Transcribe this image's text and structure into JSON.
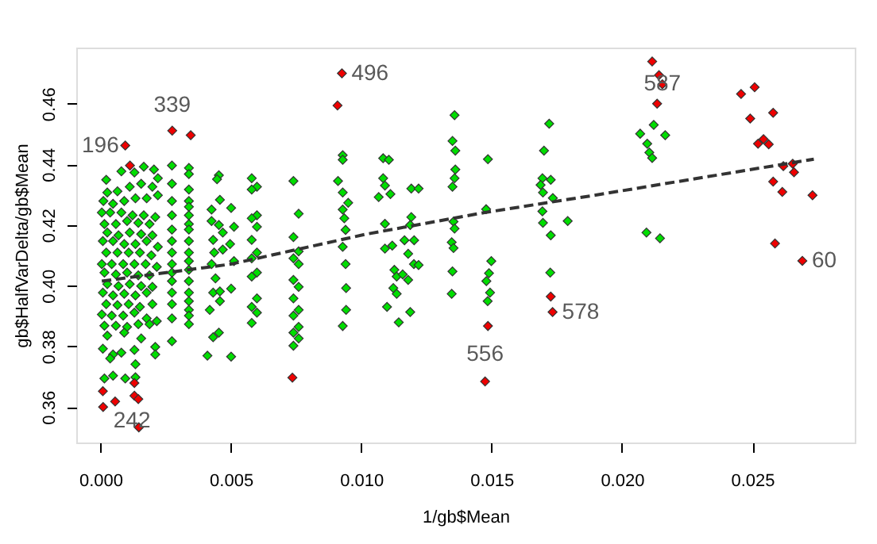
{
  "chart_data": {
    "type": "scatter",
    "xlabel": "1/gb$Mean",
    "ylabel": "gb$HalfVarDelta/gb$Mean",
    "xlim": [
      -0.00093,
      0.02893
    ],
    "ylim": [
      0.3483,
      0.4785
    ],
    "xticks": [
      {
        "value": 0,
        "label": "0.000"
      },
      0.005,
      {
        "value": 0.01,
        "label": "0.010"
      },
      0.015,
      {
        "value": 0.02,
        "label": "0.020"
      },
      0.025
    ],
    "yticks": [
      0.36,
      0.38,
      {
        "value": 0.4,
        "label": "0.40"
      },
      0.42,
      0.44,
      0.46
    ],
    "grid": false,
    "marker": "diamond",
    "series": [
      {
        "color": "#00dd00",
        "x": [
          0.00022,
          0.0008,
          0.0013,
          0.00166,
          0.00205,
          0.0022,
          0.00026,
          0.00065,
          0.00112,
          0.00156,
          0.00199,
          0.0022,
          0.00011,
          0.00048,
          0.00091,
          0.00134,
          0.00177,
          5e-05,
          0.00037,
          0.0008,
          0.00123,
          0.00166,
          0.0021,
          0.00015,
          0.00059,
          0.00102,
          0.00145,
          0.00188,
          0.00026,
          0.00069,
          0.00112,
          0.00156,
          0.00199,
          9e-05,
          0.00048,
          0.00091,
          0.00134,
          0.00177,
          0.0022,
          0.00022,
          0.00065,
          0.00108,
          0.00151,
          0.00195,
          5e-05,
          0.00043,
          0.00087,
          0.0013,
          0.00173,
          0.00216,
          0.00015,
          0.00059,
          0.00102,
          0.00145,
          0.00188,
          0.00026,
          0.00069,
          0.00112,
          0.00156,
          0.00199,
          9e-05,
          0.00048,
          0.00091,
          0.00134,
          0.00177,
          0.00022,
          0.00065,
          0.00108,
          0.00151,
          0.00199,
          5e-05,
          0.00043,
          0.00087,
          0.0013,
          0.00177,
          0.00216,
          0.00015,
          0.00059,
          0.00102,
          0.00145,
          0.00188,
          0.00026,
          0.00091,
          0.00156,
          9e-05,
          0.00048,
          0.0008,
          0.0013,
          0.0021,
          0.0021,
          0.00037,
          0.00134,
          0.00015,
          0.00048,
          0.00095,
          0.00134,
          0.00274,
          0.00274,
          0.00274,
          0.00274,
          0.00274,
          0.00274,
          0.00274,
          0.00274,
          0.00274,
          0.00274,
          0.00274,
          0.00274,
          0.00274,
          0.00274,
          0.00339,
          0.00339,
          0.00339,
          0.00339,
          0.00339,
          0.00339,
          0.00339,
          0.00339,
          0.00339,
          0.00339,
          0.00339,
          0.00339,
          0.00339,
          0.00339,
          0.00339,
          0.00339,
          0.00339,
          0.00339,
          0.00454,
          0.00447,
          0.00458,
          0.00426,
          0.00501,
          0.00426,
          0.00454,
          0.00469,
          0.00512,
          0.00432,
          0.00497,
          0.00436,
          0.00469,
          0.00512,
          0.00426,
          0.00441,
          0.00432,
          0.00458,
          0.00501,
          0.00458,
          0.00419,
          0.00454,
          0.00432,
          0.00501,
          0.0041,
          0.0058,
          0.006,
          0.0058,
          0.006,
          0.0058,
          0.006,
          0.0058,
          0.006,
          0.0058,
          0.006,
          0.0058,
          0.006,
          0.0058,
          0.006,
          0.0058,
          0.0074,
          0.0076,
          0.0074,
          0.0076,
          0.0074,
          0.0076,
          0.0074,
          0.0076,
          0.0074,
          0.0076,
          0.0074,
          0.0076,
          0.0074,
          0.0076,
          0.0074,
          0.00929,
          0.00929,
          0.00911,
          0.00929,
          0.0095,
          0.00929,
          0.00935,
          0.0094,
          0.00929,
          0.0094,
          0.00942,
          0.00942,
          0.00929,
          0.01084,
          0.01106,
          0.01084,
          0.01091,
          0.01067,
          0.01112,
          0.01091,
          0.01119,
          0.01091,
          0.01127,
          0.01136,
          0.01123,
          0.01136,
          0.01099,
          0.01144,
          0.01192,
          0.0122,
          0.01192,
          0.01188,
          0.01166,
          0.01203,
          0.0118,
          0.01202,
          0.0122,
          0.01159,
          0.0118,
          0.01188,
          0.01358,
          0.0135,
          0.01361,
          0.01361,
          0.01358,
          0.0135,
          0.01354,
          0.01358,
          0.01347,
          0.01354,
          0.0135,
          0.01347,
          0.01486,
          0.01479,
          0.01499,
          0.0149,
          0.0148,
          0.01494,
          0.01485,
          0.01721,
          0.01701,
          0.01695,
          0.01727,
          0.01688,
          0.01697,
          0.01735,
          0.01695,
          0.01697,
          0.01792,
          0.01727,
          0.01725,
          0.02122,
          0.0207,
          0.02166,
          0.02097,
          0.02105,
          0.02116,
          0.02094,
          0.02146
        ],
        "values": [
          0.4349,
          0.4377,
          0.4373,
          0.4392,
          0.4383,
          0.4354,
          0.4307,
          0.4311,
          0.4326,
          0.4336,
          0.4326,
          0.4298,
          0.4279,
          0.427,
          0.4279,
          0.4288,
          0.4288,
          0.4241,
          0.4241,
          0.4241,
          0.4232,
          0.4232,
          0.4226,
          0.4203,
          0.4203,
          0.4213,
          0.4207,
          0.4203,
          0.4175,
          0.4166,
          0.4175,
          0.417,
          0.4166,
          0.4147,
          0.4147,
          0.4137,
          0.4137,
          0.4147,
          0.4128,
          0.4109,
          0.4109,
          0.4109,
          0.4109,
          0.41,
          0.4071,
          0.4071,
          0.4071,
          0.4071,
          0.4071,
          0.4062,
          0.4043,
          0.4037,
          0.4043,
          0.4034,
          0.4034,
          0.4005,
          0.3999,
          0.4005,
          0.3999,
          0.3996,
          0.3977,
          0.3968,
          0.3973,
          0.3968,
          0.3977,
          0.3939,
          0.3936,
          0.3939,
          0.393,
          0.3939,
          0.3905,
          0.3901,
          0.3901,
          0.3911,
          0.3892,
          0.3883,
          0.3868,
          0.3868,
          0.3864,
          0.3873,
          0.3873,
          0.3835,
          0.3845,
          0.3826,
          0.3792,
          0.3773,
          0.3779,
          0.3788,
          0.3798,
          0.3773,
          0.376,
          0.3741,
          0.3694,
          0.3703,
          0.3694,
          0.3698,
          0.4396,
          0.4336,
          0.4279,
          0.4232,
          0.4185,
          0.4147,
          0.4109,
          0.4071,
          0.4043,
          0.4015,
          0.3977,
          0.3939,
          0.3892,
          0.3817,
          0.4388,
          0.4368,
          0.4317,
          0.4279,
          0.426,
          0.4232,
          0.4203,
          0.4185,
          0.4147,
          0.4109,
          0.4081,
          0.4052,
          0.4015,
          0.3977,
          0.3949,
          0.392,
          0.3901,
          0.3873,
          0.4364,
          0.4351,
          0.4283,
          0.4251,
          0.4256,
          0.4213,
          0.42,
          0.4175,
          0.4194,
          0.4151,
          0.4137,
          0.4109,
          0.4119,
          0.4081,
          0.4071,
          0.4024,
          0.3977,
          0.3981,
          0.399,
          0.3949,
          0.392,
          0.3845,
          0.383,
          0.3766,
          0.3769,
          0.4354,
          0.4326,
          0.4317,
          0.4232,
          0.4222,
          0.4194,
          0.4151,
          0.4109,
          0.409,
          0.4043,
          0.403,
          0.3958,
          0.393,
          0.3911,
          0.3877,
          0.4345,
          0.4237,
          0.416,
          0.4113,
          0.409,
          0.4071,
          0.4019,
          0.3996,
          0.3958,
          0.392,
          0.3901,
          0.3864,
          0.3845,
          0.3826,
          0.3802,
          0.443,
          0.4415,
          0.4345,
          0.4307,
          0.4273,
          0.4251,
          0.4222,
          0.4184,
          0.4128,
          0.4071,
          0.3992,
          0.392,
          0.3867,
          0.442,
          0.4415,
          0.4354,
          0.433,
          0.4292,
          0.4302,
          0.4204,
          0.4132,
          0.4122,
          0.4052,
          0.403,
          0.3992,
          0.3973,
          0.393,
          0.3879,
          0.432,
          0.432,
          0.4226,
          0.42,
          0.415,
          0.415,
          0.4105,
          0.4071,
          0.4068,
          0.4037,
          0.4019,
          0.3913,
          0.4562,
          0.4477,
          0.4445,
          0.4383,
          0.4354,
          0.4326,
          0.4211,
          0.4188,
          0.4143,
          0.4124,
          0.4047,
          0.3973,
          0.4417,
          0.4252,
          0.4081,
          0.4041,
          0.4015,
          0.3977,
          0.3949,
          0.4534,
          0.4445,
          0.4354,
          0.4349,
          0.4332,
          0.4307,
          0.4289,
          0.4245,
          0.4207,
          0.4213,
          0.4166,
          0.4043,
          0.453,
          0.4501,
          0.4496,
          0.4468,
          0.4439,
          0.4421,
          0.4175,
          0.4156
        ]
      },
      {
        "color": "#ee0000",
        "x": [
          0.00095,
          0.00113,
          0.00275,
          0.00346,
          0.00926,
          0.00909,
          0.00736,
          9e-05,
          0.00056,
          0.0001,
          0.0013,
          0.0013,
          0.00145,
          0.00147,
          0.01486,
          0.01475,
          0.01727,
          0.01734,
          0.02116,
          0.02142,
          0.02155,
          0.02135,
          0.02457,
          0.02509,
          0.02492,
          0.0258,
          0.02522,
          0.02543,
          0.02563,
          0.02619,
          0.02655,
          0.0266,
          0.0258,
          0.02615,
          0.02731,
          0.02587,
          0.02692
        ],
        "values": [
          0.4462,
          0.4396,
          0.4511,
          0.4496,
          0.47,
          0.4594,
          0.3697,
          0.3652,
          0.3618,
          0.36,
          0.3679,
          0.3637,
          0.3626,
          0.3533,
          0.3867,
          0.3684,
          0.3964,
          0.3913,
          0.4739,
          0.4694,
          0.4664,
          0.46,
          0.4632,
          0.4654,
          0.4551,
          0.457,
          0.4468,
          0.4483,
          0.4466,
          0.4394,
          0.4402,
          0.4374,
          0.4343,
          0.4309,
          0.4298,
          0.4139,
          0.4082
        ]
      },
      {
        "color": "#333333",
        "type": "line",
        "line_style": "dashed",
        "marker": "none",
        "x": [
          5e-05,
          0.005,
          0.0102,
          0.01473,
          0.01894,
          0.02736
        ],
        "values": [
          0.4015,
          0.4071,
          0.417,
          0.4241,
          0.4298,
          0.4417
        ]
      }
    ],
    "annotations": [
      {
        "text": "196",
        "x": 0.00095,
        "y": 0.4462
      },
      {
        "text": "339",
        "x": 0.00275,
        "y": 0.4511
      },
      {
        "text": "496",
        "x": 0.00926,
        "y": 0.47
      },
      {
        "text": "556",
        "x": 0.01475,
        "y": 0.3684
      },
      {
        "text": "578",
        "x": 0.01734,
        "y": 0.3913
      },
      {
        "text": "587",
        "x": 0.02155,
        "y": 0.4664
      },
      {
        "text": "60",
        "x": 0.02692,
        "y": 0.4082
      },
      {
        "text": "242",
        "x": 0.00145,
        "y": 0.3626
      }
    ]
  }
}
